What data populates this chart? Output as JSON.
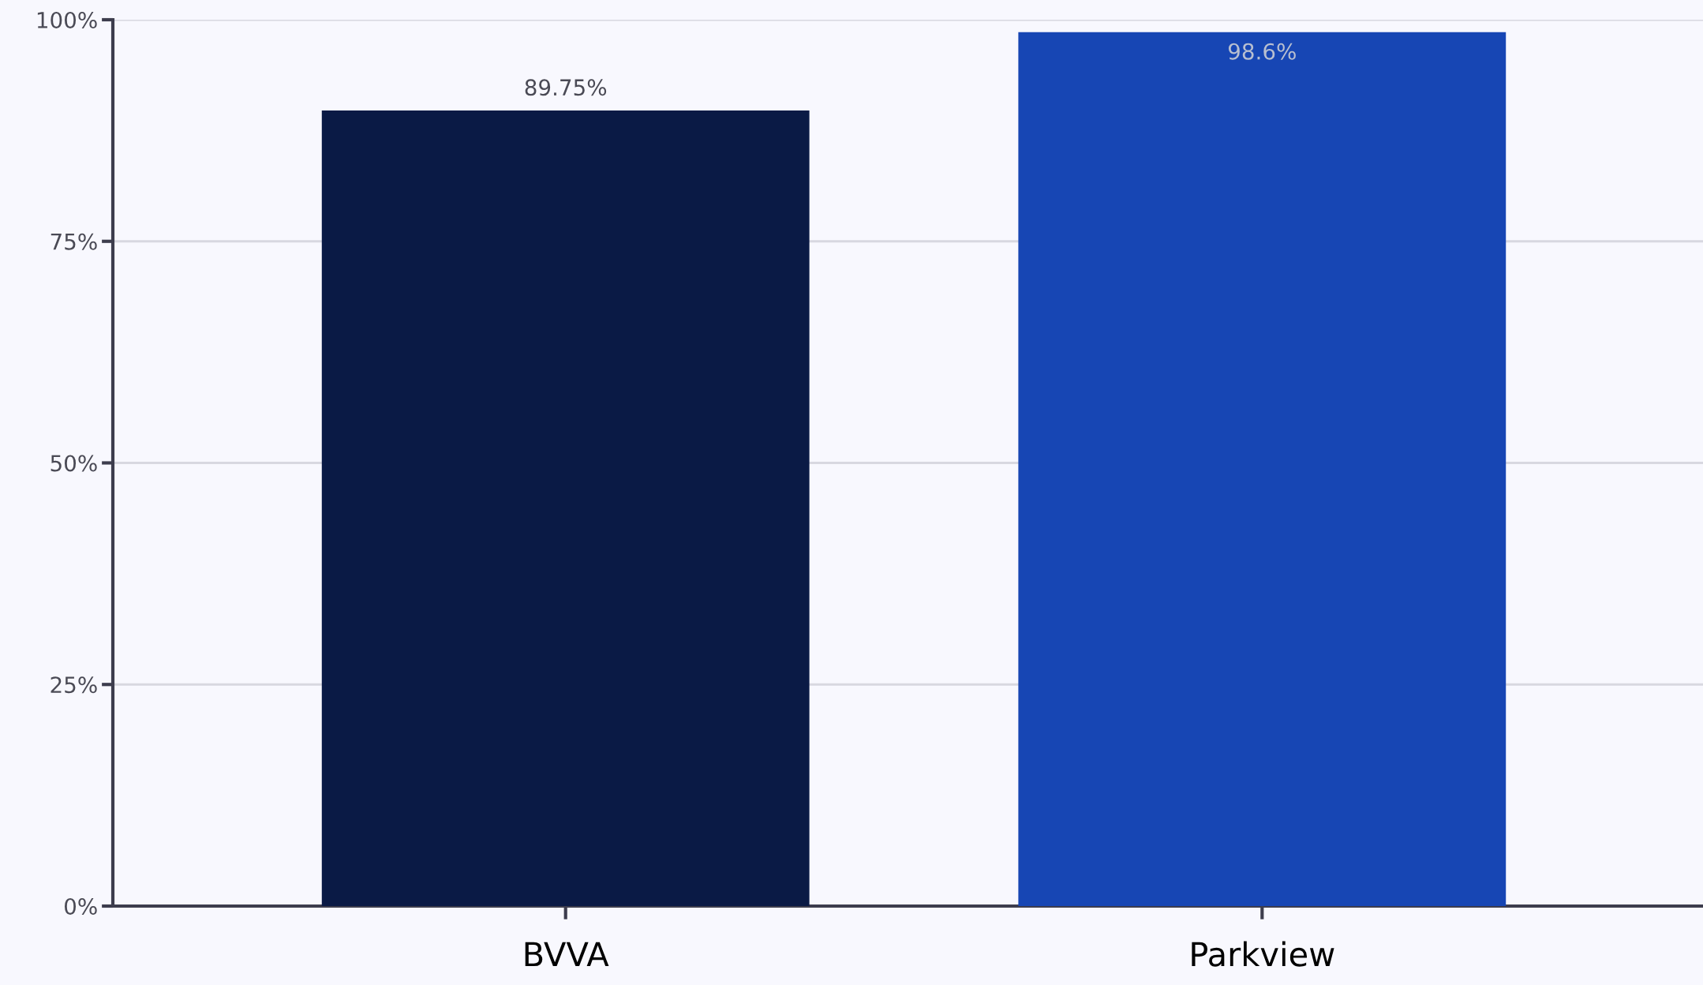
{
  "chart_data": {
    "type": "bar",
    "categories": [
      "BVVA",
      "Parkview"
    ],
    "values": [
      89.75,
      98.6
    ],
    "colors": [
      "#0a1a45",
      "#1746b4"
    ],
    "value_labels": [
      "89.75%",
      "98.6%"
    ],
    "ylim": [
      0,
      100
    ],
    "yticks": [
      {
        "value": 0,
        "label": "0%"
      },
      {
        "value": 25,
        "label": "25%"
      },
      {
        "value": 50,
        "label": "50%"
      },
      {
        "value": 75,
        "label": "75%"
      },
      {
        "value": 100,
        "label": "100%"
      }
    ],
    "grid": "y",
    "legend": false
  }
}
